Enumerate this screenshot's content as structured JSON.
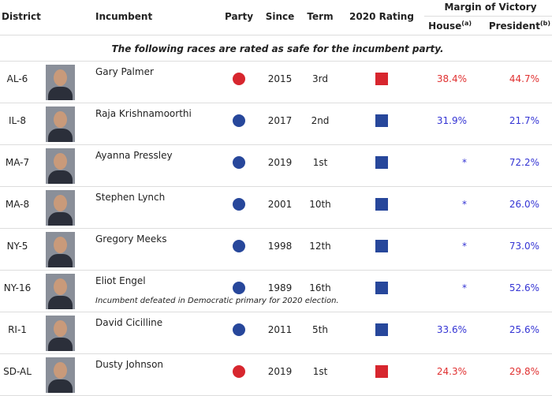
{
  "table": {
    "header": {
      "district": "District",
      "incumbent": "Incumbent",
      "party": "Party",
      "since": "Since",
      "term": "Term",
      "rating": "2020 Rating",
      "margin": "Margin of Victory",
      "house": "House",
      "house_note": "(a)",
      "president": "President",
      "president_note": "(b)"
    },
    "subheader": "The following races are rated as safe for the incumbent party.",
    "rows": [
      {
        "district": "AL-6",
        "incumbent": "Gary Palmer",
        "party_color": "#d7262e",
        "since": 2015,
        "term": "3rd",
        "rating_color": "#d7262e",
        "house": "38.4%",
        "president": "44.7%",
        "text_color": "#e03131"
      },
      {
        "district": "IL-8",
        "incumbent": "Raja Krishnamoorthi",
        "party_color": "#27479b",
        "since": 2017,
        "term": "2nd",
        "rating_color": "#27479b",
        "house": "31.9%",
        "president": "21.7%",
        "text_color": "#3434d4"
      },
      {
        "district": "MA-7",
        "incumbent": "Ayanna Pressley",
        "party_color": "#27479b",
        "since": 2019,
        "term": "1st",
        "rating_color": "#27479b",
        "house": "*",
        "president": "72.2%",
        "text_color": "#3434d4"
      },
      {
        "district": "MA-8",
        "incumbent": "Stephen Lynch",
        "party_color": "#27479b",
        "since": 2001,
        "term": "10th",
        "rating_color": "#27479b",
        "house": "*",
        "president": "26.0%",
        "text_color": "#3434d4"
      },
      {
        "district": "NY-5",
        "incumbent": "Gregory Meeks",
        "party_color": "#27479b",
        "since": 1998,
        "term": "12th",
        "rating_color": "#27479b",
        "house": "*",
        "president": "73.0%",
        "text_color": "#3434d4"
      },
      {
        "district": "NY-16",
        "incumbent": "Eliot Engel",
        "note": "Incumbent defeated in Democratic primary for 2020 election.",
        "party_color": "#27479b",
        "since": 1989,
        "term": "16th",
        "rating_color": "#27479b",
        "house": "*",
        "president": "52.6%",
        "text_color": "#3434d4"
      },
      {
        "district": "RI-1",
        "incumbent": "David Cicilline",
        "party_color": "#27479b",
        "since": 2011,
        "term": "5th",
        "rating_color": "#27479b",
        "house": "33.6%",
        "president": "25.6%",
        "text_color": "#3434d4"
      },
      {
        "district": "SD-AL",
        "incumbent": "Dusty Johnson",
        "party_color": "#d7262e",
        "since": 2019,
        "term": "1st",
        "rating_color": "#d7262e",
        "house": "24.3%",
        "president": "29.8%",
        "text_color": "#e03131"
      }
    ]
  }
}
